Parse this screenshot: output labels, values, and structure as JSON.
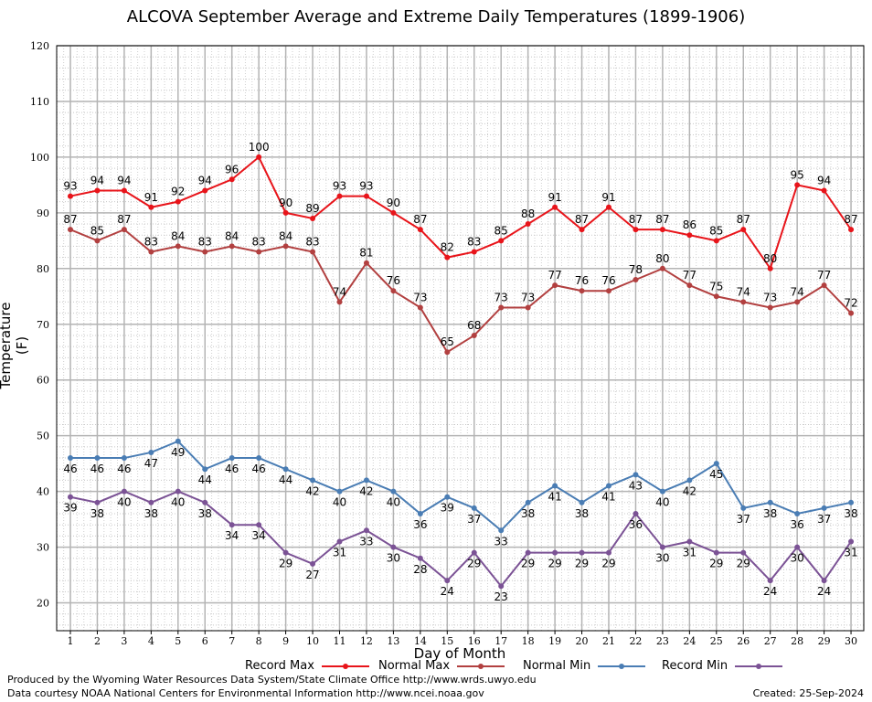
{
  "chart_data": {
    "type": "line",
    "title": "ALCOVA September Average and Extreme Daily Temperatures (1899-1906)",
    "xlabel": "Day of Month",
    "ylabel": "Temperature (F)",
    "ylim": [
      15,
      120
    ],
    "yticks": [
      20,
      30,
      40,
      50,
      60,
      70,
      80,
      90,
      100,
      110,
      120
    ],
    "x": [
      1,
      2,
      3,
      4,
      5,
      6,
      7,
      8,
      9,
      10,
      11,
      12,
      13,
      14,
      15,
      16,
      17,
      18,
      19,
      20,
      21,
      22,
      23,
      24,
      25,
      26,
      27,
      28,
      29,
      30
    ],
    "grid": true,
    "legend_position": "bottom",
    "series": [
      {
        "name": "Record Max",
        "color": "#e8141a",
        "values": [
          93,
          94,
          94,
          91,
          92,
          94,
          96,
          100,
          90,
          89,
          93,
          93,
          90,
          87,
          82,
          83,
          85,
          88,
          91,
          87,
          91,
          87,
          87,
          86,
          85,
          87,
          80,
          95,
          94,
          87
        ]
      },
      {
        "name": "Normal Max",
        "color": "#b24040",
        "values": [
          87,
          85,
          87,
          83,
          84,
          83,
          84,
          83,
          84,
          83,
          74,
          81,
          76,
          73,
          65,
          68,
          73,
          73,
          77,
          76,
          76,
          78,
          80,
          77,
          75,
          74,
          73,
          74,
          77,
          72
        ]
      },
      {
        "name": "Normal Min",
        "color": "#4a7db4",
        "values": [
          46,
          46,
          46,
          47,
          49,
          44,
          46,
          46,
          44,
          42,
          40,
          42,
          40,
          36,
          39,
          37,
          33,
          38,
          41,
          38,
          41,
          43,
          40,
          42,
          45,
          37,
          38,
          36,
          37,
          38
        ]
      },
      {
        "name": "Record Min",
        "color": "#7b5295",
        "values": [
          39,
          38,
          40,
          38,
          40,
          38,
          34,
          34,
          29,
          27,
          31,
          33,
          30,
          28,
          24,
          29,
          23,
          29,
          29,
          29,
          29,
          36,
          30,
          31,
          29,
          29,
          24,
          30,
          24,
          31
        ]
      }
    ]
  },
  "footer": {
    "credit1": "Produced by the Wyoming Water Resources Data System/State Climate Office http://www.wrds.uwyo.edu",
    "credit2": "Data courtesy NOAA National Centers for Environmental Information http://www.ncei.noaa.gov",
    "created": "Created:  25-Sep-2024"
  }
}
